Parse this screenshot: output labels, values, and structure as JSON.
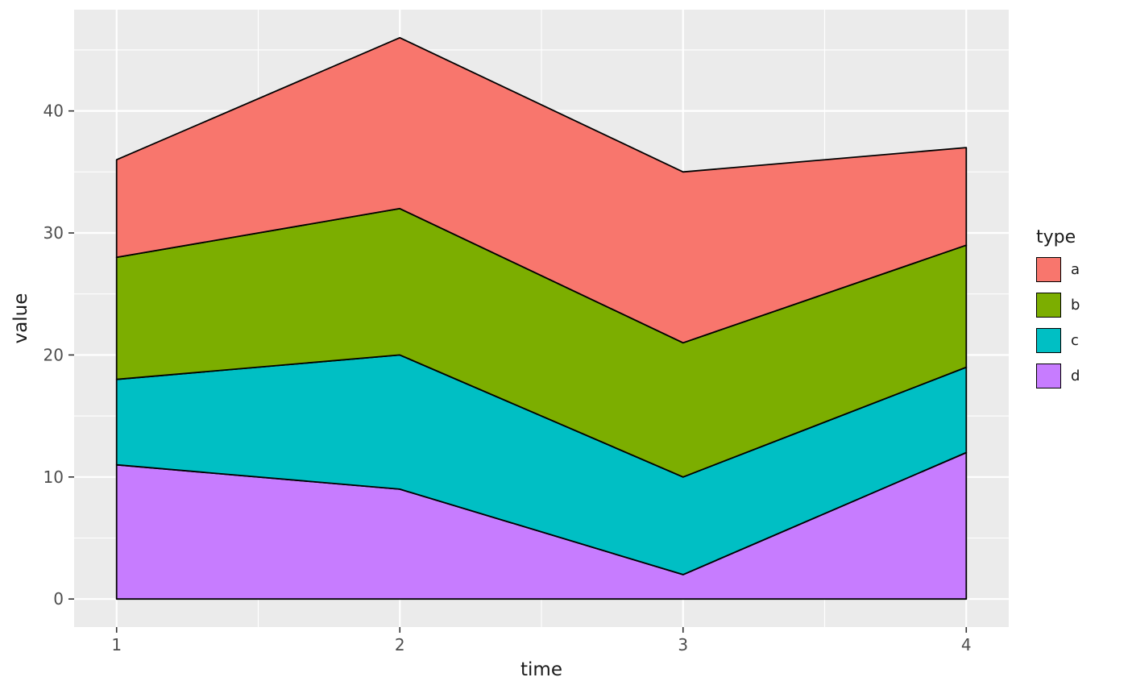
{
  "chart_data": {
    "type": "area",
    "stacked": true,
    "title": "",
    "xlabel": "time",
    "ylabel": "value",
    "x": [
      1,
      2,
      3,
      4
    ],
    "series": [
      {
        "name": "a",
        "values": [
          8,
          14,
          14,
          8
        ],
        "color": "#F8766D"
      },
      {
        "name": "b",
        "values": [
          10,
          12,
          11,
          10
        ],
        "color": "#7CAE00"
      },
      {
        "name": "c",
        "values": [
          7,
          11,
          8,
          7
        ],
        "color": "#00BFC4"
      },
      {
        "name": "d",
        "values": [
          11,
          9,
          2,
          12
        ],
        "color": "#C77CFF"
      }
    ],
    "stack_order_bottom_to_top": [
      "d",
      "c",
      "b",
      "a"
    ],
    "cumulative_tops": {
      "d": [
        11,
        9,
        2,
        12
      ],
      "c": [
        18,
        20,
        10,
        19
      ],
      "b": [
        28,
        32,
        21,
        29
      ],
      "a": [
        36,
        46,
        35,
        37
      ]
    },
    "xlim": [
      0.85,
      4.15
    ],
    "ylim": [
      -2.3,
      48.3
    ],
    "x_ticks": [
      "1",
      "2",
      "3",
      "4"
    ],
    "x_tick_values": [
      1,
      2,
      3,
      4
    ],
    "y_ticks": [
      "0",
      "10",
      "20",
      "30",
      "40"
    ],
    "y_tick_values": [
      0,
      10,
      20,
      30,
      40
    ],
    "x_minor_values": [
      1.5,
      2.5,
      3.5
    ],
    "y_minor_values": [
      5,
      15,
      25,
      35,
      45
    ],
    "grid": true,
    "legend": {
      "title": "type",
      "entries": [
        "a",
        "b",
        "c",
        "d"
      ],
      "position": "right"
    },
    "outline_color": "#000000",
    "panel_background": "#EBEBEB",
    "grid_color": "#FFFFFF",
    "tick_label_color": "#4D4D4D",
    "tick_mark_color": "#333333"
  }
}
